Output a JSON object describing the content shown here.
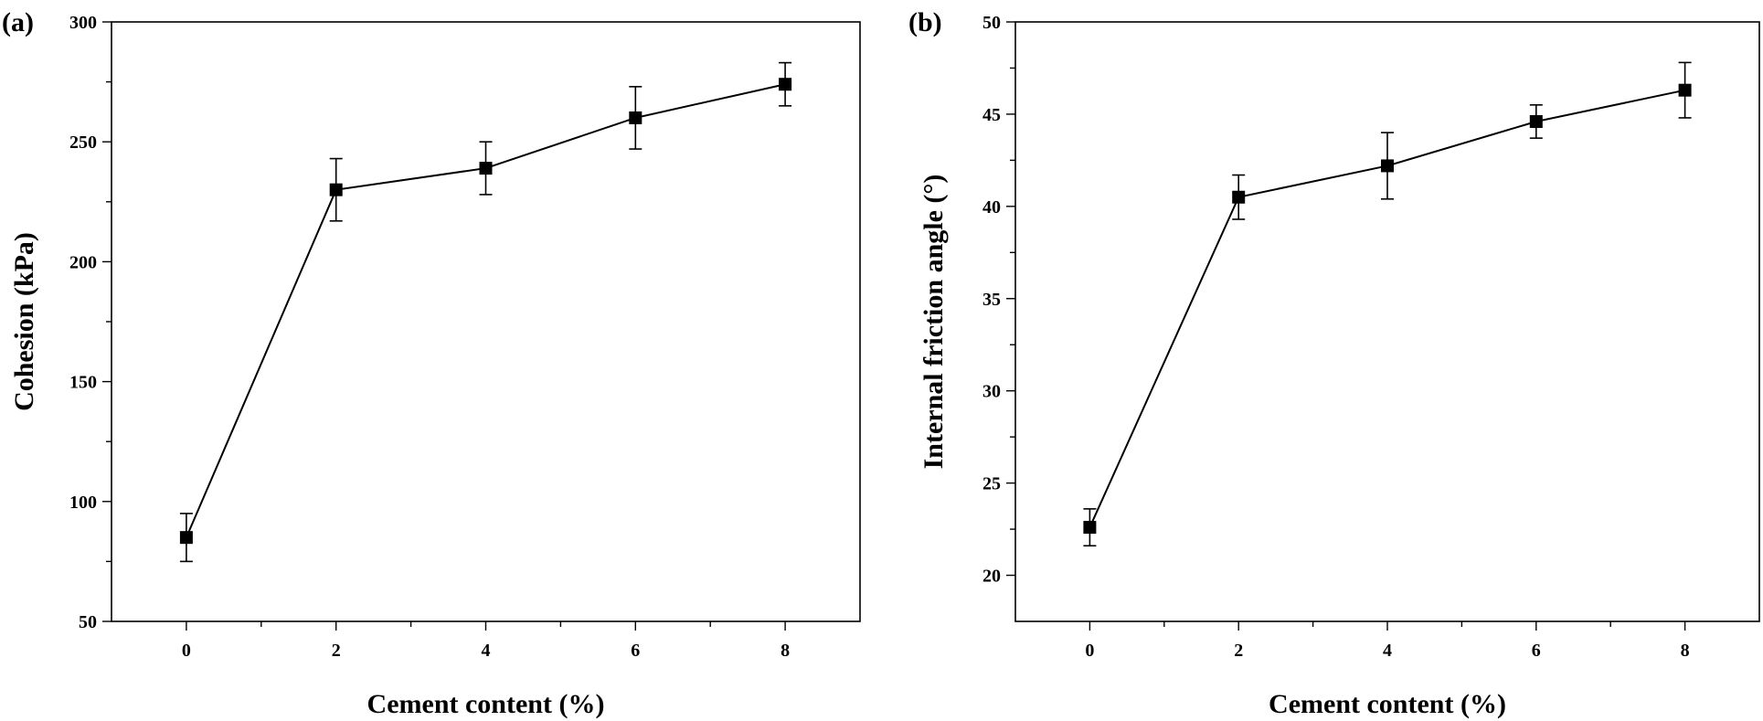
{
  "chart_data": [
    {
      "panel_label": "(a)",
      "type": "line",
      "xlabel": "Cement content (%)",
      "ylabel": "Cohesion (kPa)",
      "xlim": [
        -1,
        9
      ],
      "ylim": [
        50,
        300
      ],
      "xticks": [
        0,
        2,
        4,
        6,
        8
      ],
      "xminor": [
        1,
        3,
        5,
        7
      ],
      "yticks": [
        50,
        100,
        150,
        200,
        250,
        300
      ],
      "yminor": [
        75,
        125,
        175,
        225,
        275
      ],
      "series": [
        {
          "name": "Cohesion",
          "x": [
            0,
            2,
            4,
            6,
            8
          ],
          "y": [
            85,
            230,
            239,
            260,
            274
          ],
          "err": [
            10,
            13,
            11,
            13,
            9
          ]
        }
      ]
    },
    {
      "panel_label": "(b)",
      "type": "line",
      "xlabel": "Cement content (%)",
      "ylabel": "Internal friction angle (°)",
      "xlim": [
        -1,
        9
      ],
      "ylim": [
        17.5,
        50
      ],
      "xticks": [
        0,
        2,
        4,
        6,
        8
      ],
      "xminor": [
        1,
        3,
        5,
        7
      ],
      "yticks": [
        20,
        25,
        30,
        35,
        40,
        45,
        50
      ],
      "yminor": [
        22.5,
        27.5,
        32.5,
        37.5,
        42.5,
        47.5
      ],
      "series": [
        {
          "name": "Internal friction angle",
          "x": [
            0,
            2,
            4,
            6,
            8
          ],
          "y": [
            22.6,
            40.5,
            42.2,
            44.6,
            46.3
          ],
          "err": [
            1.0,
            1.2,
            1.8,
            0.9,
            1.5
          ]
        }
      ]
    }
  ]
}
